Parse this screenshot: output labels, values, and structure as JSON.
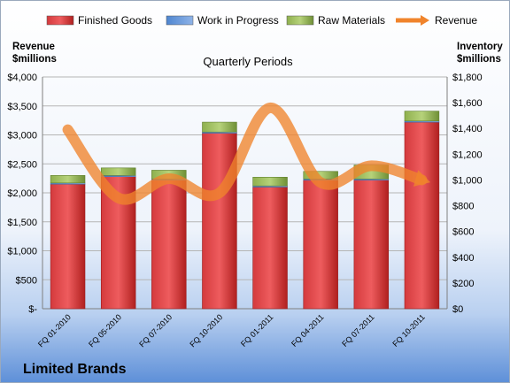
{
  "chart_data": {
    "type": "bar",
    "title": "Quarterly Periods",
    "company": "Limited Brands",
    "left_axis_label": [
      "Revenue",
      "$millions"
    ],
    "right_axis_label": [
      "Inventory",
      "$millions"
    ],
    "categories": [
      "FQ 01-2010",
      "FQ 05-2010",
      "FQ 07-2010",
      "FQ 10-2010",
      "FQ 01-2011",
      "FQ 04-2011",
      "FQ 07-2011",
      "FQ 10-2011"
    ],
    "left_ylim": [
      0,
      4000
    ],
    "right_ylim": [
      0,
      1800
    ],
    "left_ticks": [
      "$-",
      "$500",
      "$1,000",
      "$1,500",
      "$2,000",
      "$2,500",
      "$3,000",
      "$3,500",
      "$4,000"
    ],
    "right_ticks": [
      "$0",
      "$200",
      "$400",
      "$600",
      "$800",
      "$1,000",
      "$1,200",
      "$1,400",
      "$1,600",
      "$1,800"
    ],
    "series": [
      {
        "name": "Finished Goods",
        "axis": "left",
        "color": "#c0262b",
        "values": [
          2150,
          2280,
          2220,
          3030,
          2100,
          2220,
          2220,
          3220
        ]
      },
      {
        "name": "Work in Progress",
        "axis": "left",
        "color": "#5b8fd6",
        "values": [
          20,
          20,
          20,
          20,
          20,
          20,
          20,
          20
        ]
      },
      {
        "name": "Raw Materials",
        "axis": "left",
        "color": "#8db04a",
        "values": [
          130,
          130,
          150,
          170,
          150,
          130,
          240,
          170
        ]
      },
      {
        "name": "Revenue",
        "axis": "right",
        "type": "line",
        "color": "#f0842c",
        "values": [
          1390,
          860,
          1010,
          900,
          1560,
          980,
          1110,
          1000
        ]
      }
    ],
    "grid": true,
    "legend": "top"
  }
}
